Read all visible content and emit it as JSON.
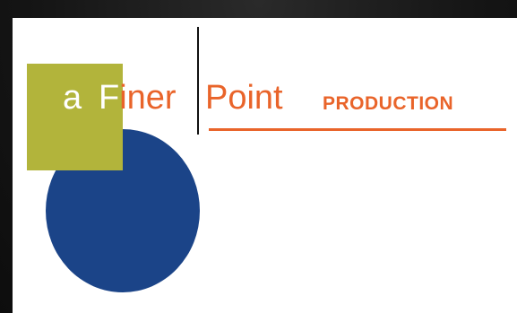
{
  "logo": {
    "word_a": "a",
    "word_finer_first": "F",
    "word_finer_rest": "iner",
    "word_point": "Point",
    "word_production": "PRODUCTION",
    "colors": {
      "orange": "#e9642a",
      "olive_green": "#b2b43b",
      "navy_blue": "#1b4488",
      "white": "#ffffff",
      "black": "#111111"
    }
  }
}
